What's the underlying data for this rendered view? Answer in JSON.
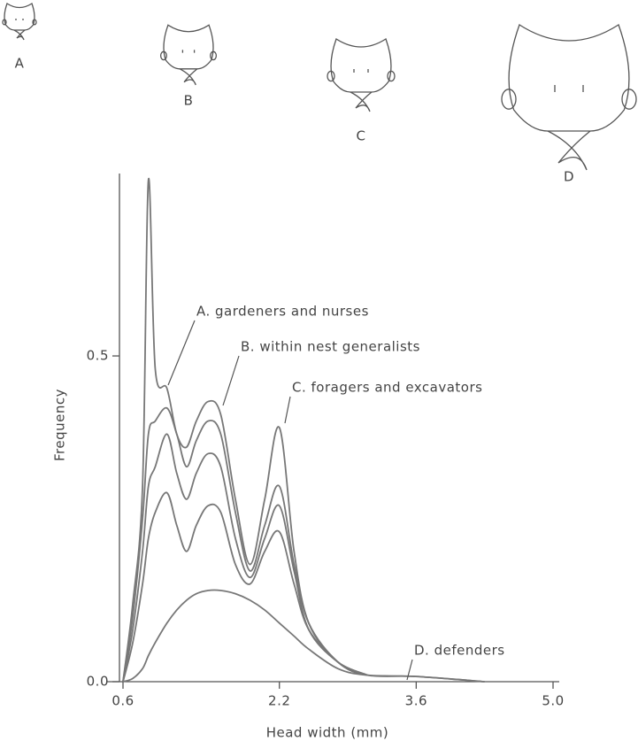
{
  "chart_data": {
    "type": "line",
    "x": [
      0.6,
      0.7,
      0.8,
      0.86,
      0.93,
      1.05,
      1.15,
      1.25,
      1.35,
      1.47,
      1.6,
      1.75,
      1.9,
      2.05,
      2.2,
      2.35,
      2.5,
      2.8,
      3.1,
      3.6,
      4.3
    ],
    "series": [
      {
        "color": "#777777",
        "values": [
          0,
          0.12,
          0.3,
          0.77,
          0.48,
          0.45,
          0.38,
          0.36,
          0.4,
          0.43,
          0.41,
          0.28,
          0.18,
          0.28,
          0.39,
          0.2,
          0.09,
          0.03,
          0.01,
          0.008,
          0
        ]
      },
      {
        "color": "#777777",
        "values": [
          0,
          0.1,
          0.25,
          0.38,
          0.4,
          0.42,
          0.38,
          0.33,
          0.37,
          0.4,
          0.38,
          0.26,
          0.17,
          0.24,
          0.3,
          0.18,
          0.09,
          0.03,
          0.01,
          null,
          null
        ]
      },
      {
        "color": "#777777",
        "values": [
          0,
          0.08,
          0.2,
          0.3,
          0.33,
          0.38,
          0.32,
          0.28,
          0.32,
          0.35,
          0.33,
          0.22,
          0.16,
          0.22,
          0.27,
          0.17,
          0.08,
          0.03,
          0.01,
          null,
          null
        ]
      },
      {
        "color": "#777777",
        "values": [
          0,
          0.06,
          0.15,
          0.22,
          0.26,
          0.29,
          0.24,
          0.2,
          0.24,
          0.27,
          0.26,
          0.18,
          0.15,
          0.2,
          0.23,
          0.15,
          0.08,
          0.03,
          0.01,
          null,
          null
        ]
      },
      {
        "color": "#777777",
        "values": [
          0,
          0.005,
          0.02,
          0.04,
          0.06,
          0.09,
          0.11,
          0.125,
          0.135,
          0.14,
          0.14,
          0.135,
          0.125,
          0.11,
          0.09,
          0.07,
          0.05,
          0.02,
          0.01,
          0.008,
          0
        ]
      }
    ],
    "xlim": [
      0.6,
      5.0
    ],
    "ylim": [
      0,
      0.78
    ],
    "xticks": [
      0.6,
      2.2,
      3.6,
      {
        "value": 5.0,
        "label": "5.0"
      }
    ],
    "yticks": [
      {
        "value": 0,
        "label": "0.0"
      },
      0.5
    ],
    "xlabel": "Head width (mm)",
    "ylabel": "Frequency",
    "annotations": [
      "A. gardeners and nurses",
      "B. within nest generalists",
      "C. foragers and excavators",
      "D. defenders"
    ],
    "head_labels": [
      "A",
      "B",
      "C",
      "D"
    ]
  }
}
